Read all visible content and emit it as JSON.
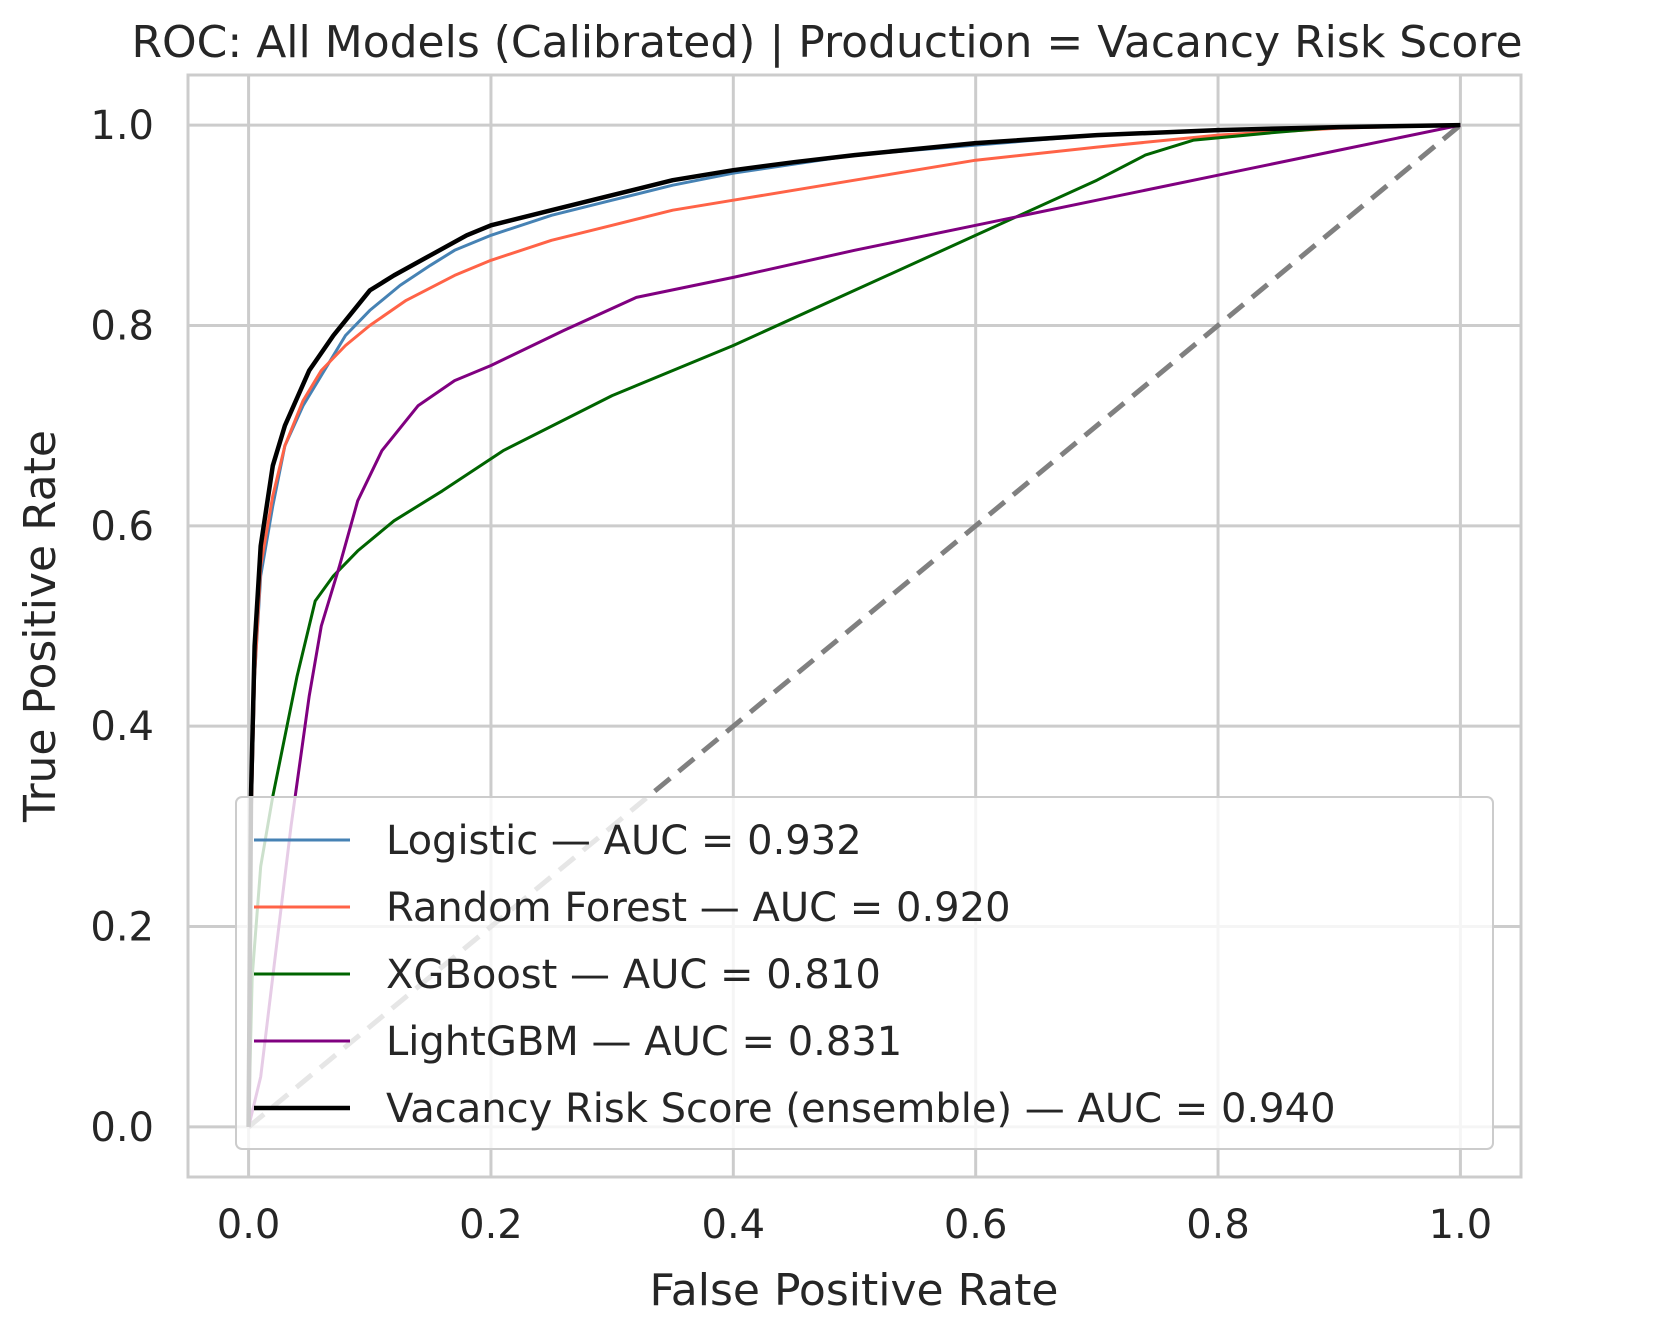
{
  "chart_data": {
    "type": "line",
    "title": "ROC: All Models (Calibrated) | Production = Vacancy Risk Score",
    "xlabel": "False Positive Rate",
    "ylabel": "True Positive Rate",
    "xlim": [
      -0.05,
      1.05
    ],
    "ylim": [
      -0.05,
      1.05
    ],
    "xticks": [
      "0.0",
      "0.2",
      "0.4",
      "0.6",
      "0.8",
      "1.0"
    ],
    "yticks": [
      "0.0",
      "0.2",
      "0.4",
      "0.6",
      "0.8",
      "1.0"
    ],
    "grid": true,
    "legend_position": "lower-right",
    "series": [
      {
        "name": "Logistic — AUC = 0.932",
        "color": "#4682b4",
        "points": [
          [
            0,
            0
          ],
          [
            0.002,
            0.3
          ],
          [
            0.005,
            0.45
          ],
          [
            0.01,
            0.55
          ],
          [
            0.02,
            0.62
          ],
          [
            0.03,
            0.68
          ],
          [
            0.045,
            0.72
          ],
          [
            0.06,
            0.75
          ],
          [
            0.08,
            0.79
          ],
          [
            0.1,
            0.815
          ],
          [
            0.125,
            0.84
          ],
          [
            0.15,
            0.86
          ],
          [
            0.17,
            0.875
          ],
          [
            0.2,
            0.89
          ],
          [
            0.25,
            0.91
          ],
          [
            0.3,
            0.925
          ],
          [
            0.35,
            0.94
          ],
          [
            0.4,
            0.952
          ],
          [
            0.5,
            0.97
          ],
          [
            0.6,
            0.98
          ],
          [
            0.7,
            0.99
          ],
          [
            0.8,
            0.995
          ],
          [
            0.9,
            0.998
          ],
          [
            1,
            1
          ]
        ]
      },
      {
        "name": "Random Forest — AUC = 0.920",
        "color": "#ff6347",
        "points": [
          [
            0,
            0
          ],
          [
            0.002,
            0.3
          ],
          [
            0.005,
            0.45
          ],
          [
            0.01,
            0.56
          ],
          [
            0.02,
            0.63
          ],
          [
            0.03,
            0.68
          ],
          [
            0.045,
            0.725
          ],
          [
            0.06,
            0.755
          ],
          [
            0.08,
            0.78
          ],
          [
            0.1,
            0.8
          ],
          [
            0.13,
            0.825
          ],
          [
            0.17,
            0.85
          ],
          [
            0.2,
            0.865
          ],
          [
            0.25,
            0.885
          ],
          [
            0.3,
            0.9
          ],
          [
            0.35,
            0.915
          ],
          [
            0.4,
            0.925
          ],
          [
            0.5,
            0.945
          ],
          [
            0.6,
            0.965
          ],
          [
            0.7,
            0.978
          ],
          [
            0.8,
            0.99
          ],
          [
            0.9,
            0.997
          ],
          [
            1,
            1
          ]
        ]
      },
      {
        "name": "XGBoost — AUC = 0.810",
        "color": "#006400",
        "points": [
          [
            0,
            0
          ],
          [
            0.003,
            0.15
          ],
          [
            0.01,
            0.26
          ],
          [
            0.02,
            0.33
          ],
          [
            0.04,
            0.45
          ],
          [
            0.055,
            0.525
          ],
          [
            0.07,
            0.55
          ],
          [
            0.09,
            0.575
          ],
          [
            0.12,
            0.605
          ],
          [
            0.16,
            0.635
          ],
          [
            0.21,
            0.675
          ],
          [
            0.3,
            0.73
          ],
          [
            0.4,
            0.78
          ],
          [
            0.5,
            0.835
          ],
          [
            0.6,
            0.89
          ],
          [
            0.7,
            0.945
          ],
          [
            0.74,
            0.97
          ],
          [
            0.78,
            0.985
          ],
          [
            0.85,
            0.993
          ],
          [
            0.9,
            0.998
          ],
          [
            1,
            1
          ]
        ]
      },
      {
        "name": "LightGBM — AUC = 0.831",
        "color": "#800080",
        "points": [
          [
            0,
            0
          ],
          [
            0.01,
            0.05
          ],
          [
            0.02,
            0.15
          ],
          [
            0.035,
            0.3
          ],
          [
            0.05,
            0.43
          ],
          [
            0.06,
            0.5
          ],
          [
            0.075,
            0.56
          ],
          [
            0.09,
            0.625
          ],
          [
            0.11,
            0.675
          ],
          [
            0.14,
            0.72
          ],
          [
            0.17,
            0.745
          ],
          [
            0.2,
            0.76
          ],
          [
            0.26,
            0.795
          ],
          [
            0.32,
            0.828
          ],
          [
            0.4,
            0.848
          ],
          [
            0.5,
            0.875
          ],
          [
            0.6,
            0.9
          ],
          [
            0.7,
            0.925
          ],
          [
            0.8,
            0.95
          ],
          [
            0.9,
            0.975
          ],
          [
            1,
            1
          ]
        ]
      },
      {
        "name": "Vacancy Risk Score (ensemble) — AUC = 0.940",
        "color": "#000000",
        "points": [
          [
            0,
            0
          ],
          [
            0.002,
            0.33
          ],
          [
            0.005,
            0.48
          ],
          [
            0.01,
            0.58
          ],
          [
            0.02,
            0.66
          ],
          [
            0.03,
            0.7
          ],
          [
            0.05,
            0.755
          ],
          [
            0.07,
            0.79
          ],
          [
            0.1,
            0.835
          ],
          [
            0.12,
            0.85
          ],
          [
            0.15,
            0.87
          ],
          [
            0.18,
            0.89
          ],
          [
            0.2,
            0.9
          ],
          [
            0.25,
            0.915
          ],
          [
            0.3,
            0.93
          ],
          [
            0.35,
            0.945
          ],
          [
            0.4,
            0.955
          ],
          [
            0.45,
            0.963
          ],
          [
            0.5,
            0.97
          ],
          [
            0.6,
            0.982
          ],
          [
            0.7,
            0.99
          ],
          [
            0.8,
            0.995
          ],
          [
            0.9,
            0.998
          ],
          [
            1,
            1
          ]
        ]
      }
    ],
    "reference_line": {
      "points": [
        [
          0,
          0
        ],
        [
          1,
          1
        ]
      ],
      "color": "#808080",
      "style": "dashed"
    }
  }
}
